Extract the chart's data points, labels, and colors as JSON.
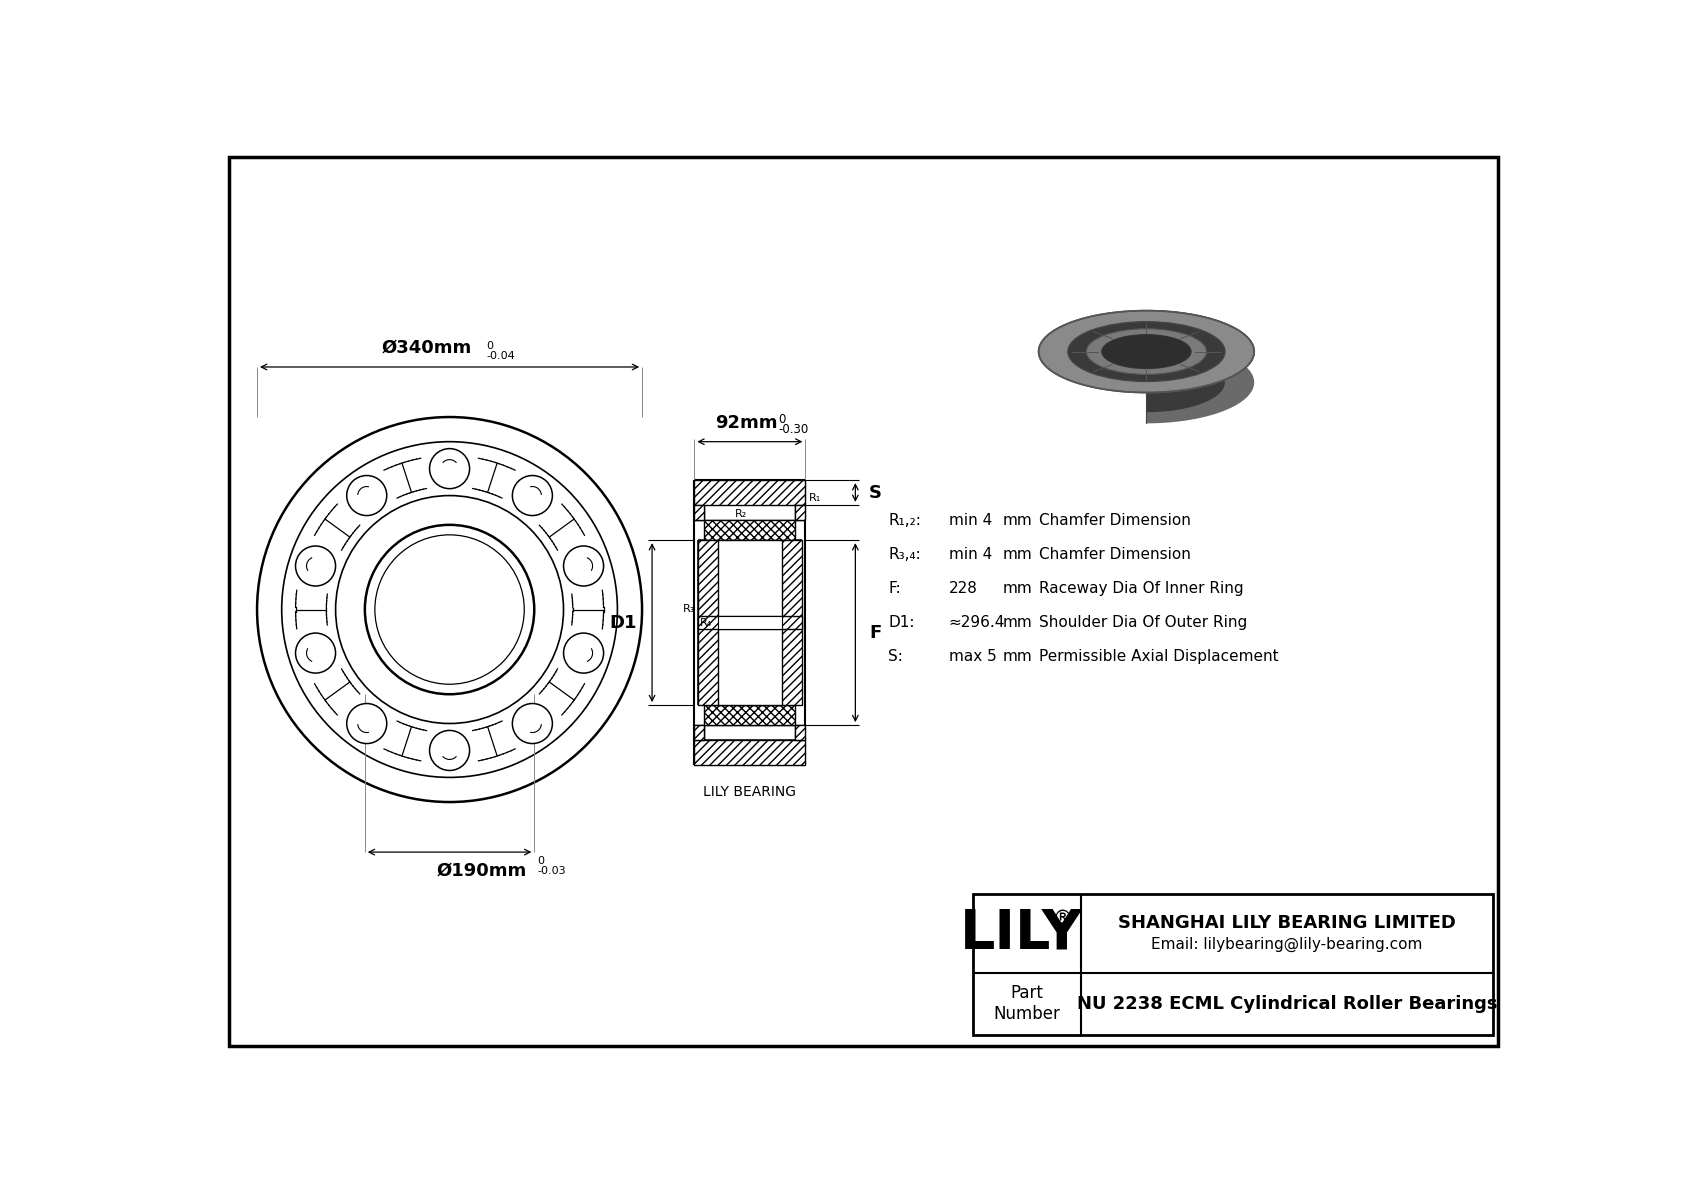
{
  "bg_color": "#ffffff",
  "dim_outer": "Ø340mm",
  "dim_outer_tol_top": "0",
  "dim_outer_tol_bot": "-0.04",
  "dim_inner": "Ø190mm",
  "dim_inner_tol_top": "0",
  "dim_inner_tol_bot": "-0.03",
  "dim_width": "92mm",
  "dim_width_tol_top": "0",
  "dim_width_tol_bot": "-0.30",
  "label_S": "S",
  "label_D1": "D1",
  "label_F": "F",
  "lily_bearing_label": "LILY BEARING",
  "R12_param": "R₁,₂:",
  "R34_param": "R₃,₄:",
  "F_param": "F:",
  "D1_param": "D1:",
  "S_param": "S:",
  "R12_val": "min 4",
  "R34_val": "min 4",
  "F_val": "228",
  "D1_val": "≈296.4",
  "S_val": "max 5",
  "unit_mm": "mm",
  "R12_desc": "Chamfer Dimension",
  "R34_desc": "Chamfer Dimension",
  "F_desc": "Raceway Dia Of Inner Ring",
  "D1_desc": "Shoulder Dia Of Outer Ring",
  "S_desc": "Permissible Axial Displacement",
  "company": "SHANGHAI LILY BEARING LIMITED",
  "email": "Email: lilybearing@lily-bearing.com",
  "part_label": "Part\nNumber",
  "part_number": "NU 2238 ECML Cylindrical Roller Bearings",
  "lily_brand": "LILY",
  "registered": "®",
  "label_R2": "R₂",
  "label_R1": "R₁",
  "label_R3": "R₃",
  "label_R4": "R₄"
}
